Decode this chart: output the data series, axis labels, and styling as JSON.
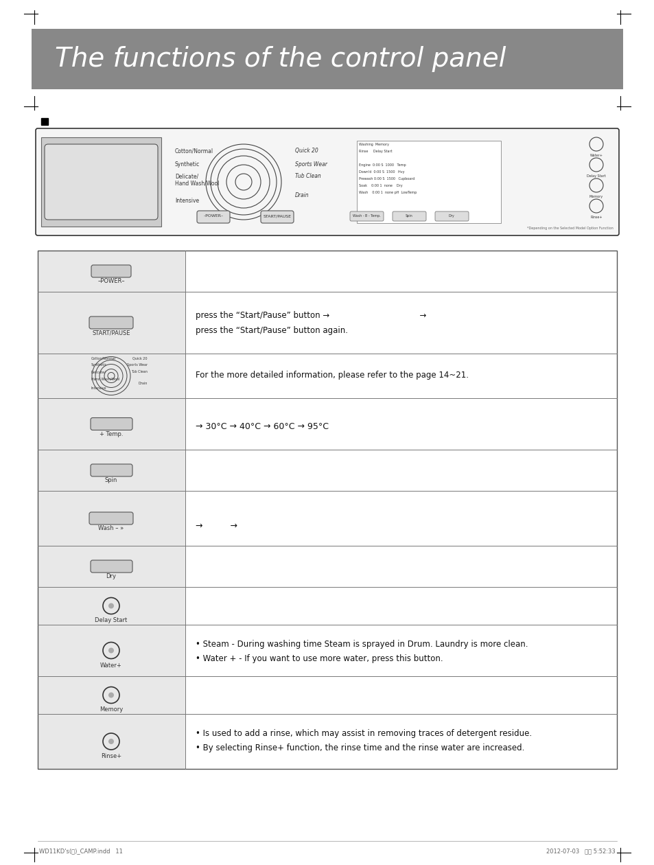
{
  "title": "The functions of the control panel",
  "title_bg_color": "#888888",
  "title_text_color": "#ffffff",
  "page_bg_color": "#ffffff",
  "border_color": "#000000",
  "table_bg_left": "#e8e8e8",
  "table_bg_right": "#ffffff",
  "table_border_color": "#555555",
  "footer_left": "WD11KD's(영)_CAMP.indd   11",
  "footer_right": "2012-07-03   오후 5:52:33",
  "power_label": "–POWER–",
  "temp_label": "+ Temp.",
  "wash_label": "Wash – »",
  "arrow": "→",
  "bullet": "•",
  "degree": "°",
  "ldquo": "“",
  "rdquo": "”"
}
